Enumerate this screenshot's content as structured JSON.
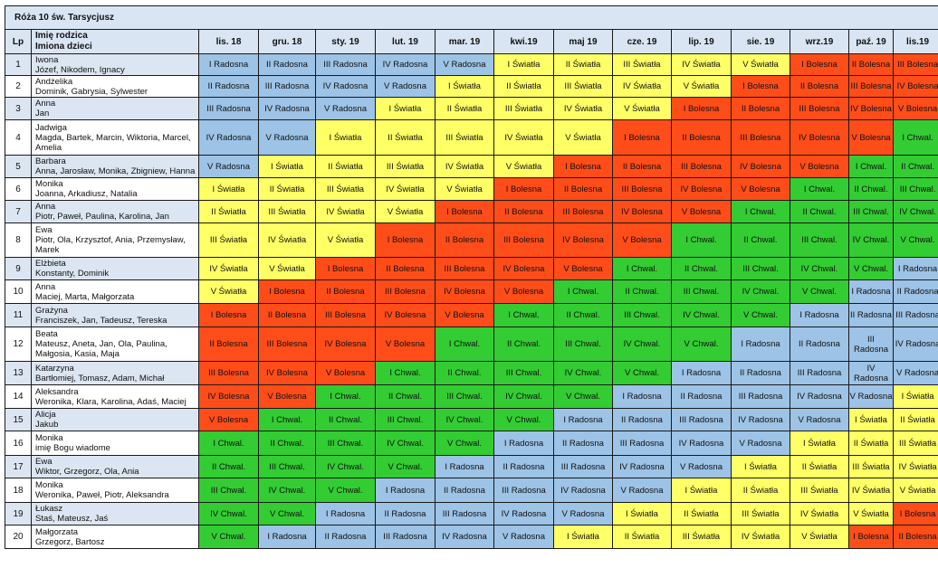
{
  "title": "Róża 10 św. Tarsycjusz",
  "headers": {
    "lp": "Lp",
    "parent": "Imię rodzica",
    "children": "Imiona dzieci",
    "months": [
      "lis. 18",
      "gru. 18",
      "sty. 19",
      "lut. 19",
      "mar. 19",
      "kwi.19",
      "maj 19",
      "cze. 19",
      "lip. 19",
      "sie. 19",
      "wrz.19",
      "paź. 19",
      "lis.19"
    ]
  },
  "mystery_colors": {
    "Radosna": "#9dc3e6",
    "Światła": "#ffff66",
    "Bolesna": "#ff4d1a",
    "Chwal.": "#33cc33"
  },
  "rows": [
    {
      "lp": "1",
      "parent": "Iwona",
      "children": "Józef, Nikodem, Ignacy",
      "cells": [
        "I Radosna",
        "II Radosna",
        "III Radosna",
        "IV Radosna",
        "V Radosna",
        "I Światła",
        "II Światła",
        "III Światła",
        "IV Światła",
        "V Światła",
        "I Bolesna",
        "II Bolesna",
        "III Bolesna"
      ]
    },
    {
      "lp": "2",
      "parent": "Andżelika",
      "children": "Dominik, Gabrysia, Sylwester",
      "cells": [
        "II Radosna",
        "III Radosna",
        "IV Radosna",
        "V Radosna",
        "I Światła",
        "II Światła",
        "III Światła",
        "IV Światła",
        "V Światła",
        "I Bolesna",
        "II Bolesna",
        "III Bolesna",
        "IV Bolesna"
      ]
    },
    {
      "lp": "3",
      "parent": "Anna",
      "children": "Jan",
      "cells": [
        "III Radosna",
        "IV Radosna",
        "V Radosna",
        "I Światła",
        "II Światła",
        "III Światła",
        "IV Światła",
        "V Światła",
        "I Bolesna",
        "II Bolesna",
        "III Bolesna",
        "IV Bolesna",
        "V Bolesna"
      ]
    },
    {
      "lp": "4",
      "parent": "Jadwiga",
      "children": "Magda, Bartek, Marcin, Wiktoria, Marcel,",
      "children2": "Amelia",
      "cells": [
        "IV Radosna",
        "V Radosna",
        "I Światła",
        "II Światła",
        "III Światła",
        "IV Światła",
        "V Światła",
        "I Bolesna",
        "II Bolesna",
        "III Bolesna",
        "IV Bolesna",
        "V Bolesna",
        "I Chwal."
      ]
    },
    {
      "lp": "5",
      "parent": "Barbara",
      "children": "Anna, Jarosław, Monika, Zbigniew, Hanna",
      "cells": [
        "V Radosna",
        "I Światła",
        "II Światła",
        "III Światła",
        "IV Światła",
        "V Światła",
        "I Bolesna",
        "II Bolesna",
        "III Bolesna",
        "IV Bolesna",
        "V Bolesna",
        "I Chwal.",
        "II Chwal."
      ]
    },
    {
      "lp": "6",
      "parent": "Monika",
      "children": "Joanna, Arkadiusz, Natalia",
      "cells": [
        "I Światła",
        "II Światła",
        "III Światła",
        "IV Światła",
        "V Światła",
        "I Bolesna",
        "II Bolesna",
        "III Bolesna",
        "IV Bolesna",
        "V Bolesna",
        "I Chwal.",
        "II Chwal.",
        "III Chwal."
      ]
    },
    {
      "lp": "7",
      "parent": "Anna",
      "children": "Piotr, Paweł, Paulina, Karolina, Jan",
      "cells": [
        "II Światła",
        "III Światła",
        "IV Światła",
        "V Światła",
        "I Bolesna",
        "II Bolesna",
        "III Bolesna",
        "IV Bolesna",
        "V Bolesna",
        "I Chwal.",
        "II Chwal.",
        "III Chwal.",
        "IV Chwal."
      ]
    },
    {
      "lp": "8",
      "parent": "Ewa",
      "children": "Piotr, Ola, Krzysztof, Ania, Przemysław,",
      "children2": "Marek",
      "cells": [
        "III Światła",
        "IV Światła",
        "V Światła",
        "I Bolesna",
        "II Bolesna",
        "III Bolesna",
        "IV Bolesna",
        "V Bolesna",
        "I Chwal.",
        "II Chwal.",
        "III Chwal.",
        "IV Chwal.",
        "V Chwal."
      ]
    },
    {
      "lp": "9",
      "parent": "Elżbieta",
      "children": "Konstanty, Dominik",
      "cells": [
        "IV Światła",
        "V Światła",
        "I Bolesna",
        "II Bolesna",
        "III Bolesna",
        "IV Bolesna",
        "V Bolesna",
        "I Chwal.",
        "II Chwal.",
        "III Chwal.",
        "IV Chwal.",
        "V Chwal.",
        "I Radosna"
      ]
    },
    {
      "lp": "10",
      "parent": "Anna",
      "children": "Maciej, Marta, Małgorzata",
      "cells": [
        "V Światła",
        "I Bolesna",
        "II Bolesna",
        "III Bolesna",
        "IV Bolesna",
        "V Bolesna",
        "I Chwal.",
        "II Chwal.",
        "III Chwal.",
        "IV Chwal.",
        "V Chwal.",
        "I Radosna",
        "II Radosna"
      ]
    },
    {
      "lp": "11",
      "parent": "Grażyna",
      "children": "Franciszek, Jan, Tadeusz, Tereska",
      "cells": [
        "I Bolesna",
        "II Bolesna",
        "III Bolesna",
        "IV Bolesna",
        "V Bolesna",
        "I Chwal.",
        "II Chwal.",
        "III Chwal.",
        "IV Chwal.",
        "V Chwal.",
        "I Radosna",
        "II Radosna",
        "III Radosna"
      ]
    },
    {
      "lp": "12",
      "parent": "Beata",
      "children": "Mateusz, Aneta, Jan, Ola, Paulina,",
      "children2": "Małgosia, Kasia, Maja",
      "cells": [
        "II Bolesna",
        "III Bolesna",
        "IV Bolesna",
        "V Bolesna",
        "I Chwal.",
        "II Chwal.",
        "III Chwal.",
        "IV Chwal.",
        "V Chwal.",
        "I Radosna",
        "II Radosna",
        "III Radosna",
        "IV Radosna"
      ]
    },
    {
      "lp": "13",
      "parent": "Katarzyna",
      "children": "Bartłomiej, Tomasz, Adam, Michał",
      "cells": [
        "III Bolesna",
        "IV Bolesna",
        "V Bolesna",
        "I Chwal.",
        "II Chwal.",
        "III Chwal.",
        "IV Chwal.",
        "V Chwal.",
        "I Radosna",
        "II Radosna",
        "III Radosna",
        "IV Radosna",
        "V Radosna"
      ]
    },
    {
      "lp": "14",
      "parent": "Aleksandra",
      "children": "Weronika, Klara, Karolina, Adaś, Maciej",
      "cells": [
        "IV Bolesna",
        "V Bolesna",
        "I Chwal.",
        "II Chwal.",
        "III Chwal.",
        "IV Chwal.",
        "V Chwal.",
        "I Radosna",
        "II Radosna",
        "III Radosna",
        "IV Radosna",
        "V Radosna",
        "I Światła"
      ]
    },
    {
      "lp": "15",
      "parent": "Alicja",
      "children": "Jakub",
      "cells": [
        "V Bolesna",
        "I Chwal.",
        "II Chwal.",
        "III Chwal.",
        "IV Chwal.",
        "V Chwal.",
        "I Radosna",
        "II Radosna",
        "III Radosna",
        "IV Radosna",
        "V Radosna",
        "I Światła",
        "II Światła"
      ]
    },
    {
      "lp": "16",
      "parent": "Monika",
      "children": "imię Bogu wiadome",
      "cells": [
        "I Chwal.",
        "II Chwal.",
        "III Chwal.",
        "IV Chwal.",
        "V Chwal.",
        "I Radosna",
        "II Radosna",
        "III Radosna",
        "IV Radosna",
        "V Radosna",
        "I Światła",
        "II Światła",
        "III Światła"
      ]
    },
    {
      "lp": "17",
      "parent": "Ewa",
      "children": "Wiktor, Grzegorz, Ola, Ania",
      "cells": [
        "II Chwal.",
        "III Chwal.",
        "IV Chwal.",
        "V Chwal.",
        "I Radosna",
        "II Radosna",
        "III Radosna",
        "IV Radosna",
        "V Radosna",
        "I Światła",
        "II Światła",
        "III Światła",
        "IV Światła"
      ]
    },
    {
      "lp": "18",
      "parent": "Monika",
      "children": "Weronika, Paweł, Piotr, Aleksandra",
      "cells": [
        "III Chwal.",
        "IV Chwal.",
        "V Chwal.",
        "I Radosna",
        "II Radosna",
        "III Radosna",
        "IV Radosna",
        "V Radosna",
        "I Światła",
        "II Światła",
        "III Światła",
        "IV Światła",
        "V Światła"
      ]
    },
    {
      "lp": "19",
      "parent": "Łukasz",
      "children": "Staś, Mateusz, Jaś",
      "cells": [
        "IV Chwal.",
        "V Chwal.",
        "I Radosna",
        "II Radosna",
        "III Radosna",
        "IV Radosna",
        "V Radosna",
        "I Światła",
        "II Światła",
        "III Światła",
        "IV Światła",
        "V Światła",
        "I Bolesna"
      ]
    },
    {
      "lp": "20",
      "parent": "Małgorzata",
      "children": "Grzegorz, Bartosz",
      "cells": [
        "V Chwal.",
        "I Radosna",
        "II Radosna",
        "III Radosna",
        "IV Radosna",
        "V Radosna",
        "I Światła",
        "II Światła",
        "III Światła",
        "IV Światła",
        "V Światła",
        "I Bolesna",
        "II Bolesna"
      ]
    }
  ]
}
